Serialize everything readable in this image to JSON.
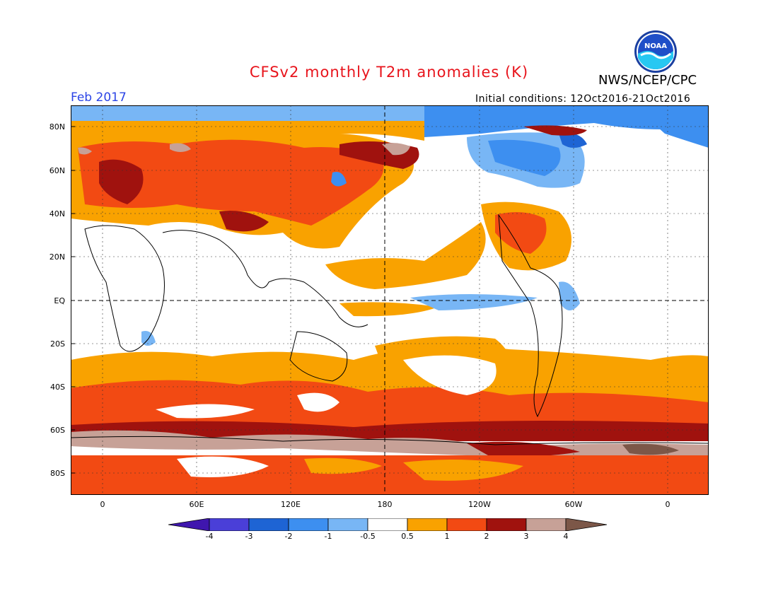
{
  "header": {
    "title": "CFSv2 monthly T2m anomalies (K)",
    "agency": "NWS/NCEP/CPC",
    "valid_month": "Feb 2017",
    "initial_conditions": "Initial conditions: 12Oct2016-21Oct2016",
    "logo_text": "NOAA"
  },
  "map": {
    "lat_labels": [
      "80N",
      "60N",
      "40N",
      "20N",
      "EQ",
      "20S",
      "40S",
      "60S",
      "80S"
    ],
    "lon_labels": [
      "0",
      "60E",
      "120E",
      "180",
      "120W",
      "60W",
      "0"
    ]
  },
  "colorbar": {
    "labels": [
      "-4",
      "-3",
      "-2",
      "-1",
      "-0.5",
      "0.5",
      "1",
      "2",
      "3",
      "4"
    ],
    "colors": [
      "#3f16ae",
      "#4a3fd8",
      "#1e64d4",
      "#3d8ff0",
      "#78b6f5",
      "#ffffff",
      "#f9a200",
      "#f24a13",
      "#a0120e",
      "#c7a197",
      "#7c5748"
    ]
  }
}
